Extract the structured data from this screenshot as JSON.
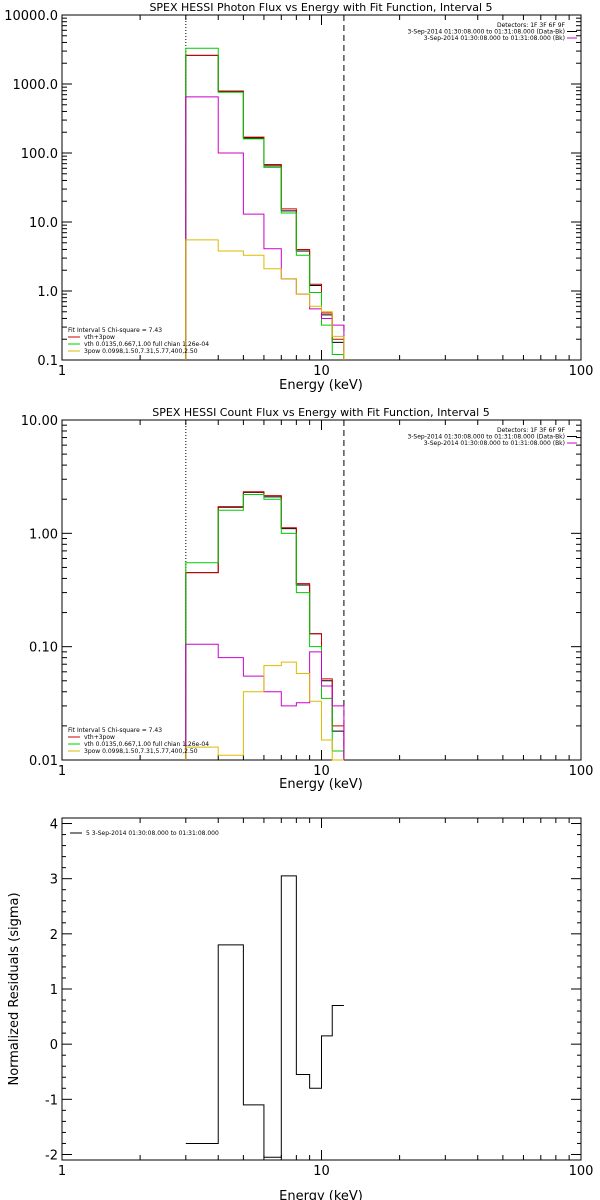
{
  "chart_data": [
    {
      "type": "line",
      "title": "SPEX HESSI Photon Flux vs Energy with Fit Function, Interval 5",
      "xlabel": "Energy (keV)",
      "ylabel": "",
      "xscale": "log",
      "yscale": "log",
      "xlim": [
        1,
        100
      ],
      "ylim": [
        0.1,
        10000
      ],
      "x_ticks": [
        "1",
        "10",
        "100"
      ],
      "y_ticks": [
        "0.1",
        "1.0",
        "10.0",
        "100.0",
        "1000.0",
        "10000.0"
      ],
      "vlines": [
        {
          "x": 3,
          "style": "dotted"
        },
        {
          "x": 12.2,
          "style": "dashed"
        }
      ],
      "legend_top": {
        "placement": "top-right",
        "lines": [
          "Detectors: 1F 3F 6F 9F",
          "3-Sep-2014 01:30:08.000 to 01:31:08.000 (Data-Bk)",
          "3-Sep-2014 01:30:08.000 to 01:31:08.000 (Bk)"
        ],
        "colors": [
          "",
          "#000000",
          "#cc00cc"
        ]
      },
      "legend_fit": {
        "placement": "bottom-left",
        "header": "Fit Interval 5   Chi-square = 7.43",
        "lines": [
          "vth+3pow",
          "vth 0.0135,0.667,1.00  full chian 1.26e-04",
          "3pow 0.0998,1.50,7.31,5.77,400,2.50"
        ],
        "colors": [
          "#cc0000",
          "#00cc00",
          "#ddbb00"
        ]
      },
      "bin_edges": [
        3,
        4,
        5,
        6,
        7,
        8,
        9,
        10,
        11,
        12.2
      ],
      "series": [
        {
          "color": "#000000",
          "values": [
            2600,
            780,
            165,
            65,
            14.5,
            3.8,
            1.2,
            0.45,
            0.18
          ]
        },
        {
          "color": "#cc0000",
          "values": [
            2600,
            790,
            170,
            68,
            15.5,
            4.0,
            1.25,
            0.48,
            0.2
          ]
        },
        {
          "color": "#00cc00",
          "values": [
            3300,
            760,
            160,
            62,
            13.5,
            3.3,
            0.95,
            0.32,
            0.12
          ]
        },
        {
          "color": "#cc00cc",
          "values": [
            650,
            100,
            13,
            4.1,
            1.5,
            0.9,
            0.55,
            0.4,
            0.32
          ]
        },
        {
          "color": "#ddbb00",
          "values": [
            5.5,
            3.8,
            3.3,
            2.1,
            1.5,
            0.9,
            0.6,
            0.5,
            0.22
          ]
        }
      ]
    },
    {
      "type": "line",
      "title": "SPEX HESSI Count Flux vs Energy with Fit Function, Interval 5",
      "xlabel": "Energy (keV)",
      "ylabel": "",
      "xscale": "log",
      "yscale": "log",
      "xlim": [
        1,
        100
      ],
      "ylim": [
        0.01,
        10
      ],
      "x_ticks": [
        "1",
        "10",
        "100"
      ],
      "y_ticks": [
        "0.01",
        "0.10",
        "1.00",
        "10.00"
      ],
      "vlines": [
        {
          "x": 3,
          "style": "dotted"
        },
        {
          "x": 12.2,
          "style": "dashed"
        }
      ],
      "legend_top": {
        "placement": "top-right",
        "lines": [
          "Detectors: 1F 3F 6F 9F",
          "3-Sep-2014 01:30:08.000 to 01:31:08.000 (Data-Bk)",
          "3-Sep-2014 01:30:08.000 to 01:31:08.000 (Bk)"
        ],
        "colors": [
          "",
          "#000000",
          "#cc00cc"
        ]
      },
      "legend_fit": {
        "placement": "bottom-left",
        "header": "Fit Interval 5   Chi-square = 7.43",
        "lines": [
          "vth+3pow",
          "vth 0.0135,0.667,1.00  full chian 1.26e-04",
          "3pow 0.0998,1.50,7.31,5.77,400,2.50"
        ],
        "colors": [
          "#cc0000",
          "#00cc00",
          "#ddbb00"
        ]
      },
      "bin_edges": [
        3,
        4,
        5,
        6,
        7,
        8,
        9,
        10,
        11,
        12.2
      ],
      "series": [
        {
          "color": "#000000",
          "values": [
            0.45,
            1.7,
            2.3,
            2.1,
            1.1,
            0.35,
            0.13,
            0.05,
            0.018
          ]
        },
        {
          "color": "#cc0000",
          "values": [
            0.45,
            1.72,
            2.33,
            2.15,
            1.12,
            0.36,
            0.13,
            0.052,
            0.02
          ]
        },
        {
          "color": "#00cc00",
          "values": [
            0.55,
            1.6,
            2.2,
            2.0,
            1.0,
            0.3,
            0.1,
            0.035,
            0.012
          ]
        },
        {
          "color": "#cc00cc",
          "values": [
            0.105,
            0.08,
            0.055,
            0.04,
            0.03,
            0.032,
            0.09,
            0.045,
            0.03
          ]
        },
        {
          "color": "#ddbb00",
          "values": [
            0.013,
            0.011,
            0.04,
            0.068,
            0.073,
            0.058,
            0.033,
            0.015,
            0.01
          ]
        }
      ]
    },
    {
      "type": "line",
      "title": "",
      "xlabel": "Energy (keV)",
      "ylabel": "Normalized Residuals (sigma)",
      "xscale": "log",
      "yscale": "linear",
      "xlim": [
        1,
        100
      ],
      "ylim": [
        -2.1,
        4.1
      ],
      "x_ticks": [
        "1",
        "10",
        "100"
      ],
      "y_ticks": [
        "-2",
        "-1",
        "0",
        "1",
        "2",
        "3",
        "4"
      ],
      "legend_top": {
        "placement": "top-left",
        "lines": [
          "5  3-Sep-2014 01:30:08.000 to 01:31:08.000"
        ],
        "colors": [
          "#000000"
        ]
      },
      "bin_edges": [
        3,
        4,
        5,
        6,
        7,
        8,
        9,
        10,
        11,
        12.2
      ],
      "series": [
        {
          "color": "#000000",
          "values": [
            -1.8,
            1.8,
            -1.1,
            -2.05,
            3.05,
            -0.55,
            -0.8,
            0.15,
            0.7
          ]
        }
      ]
    }
  ]
}
